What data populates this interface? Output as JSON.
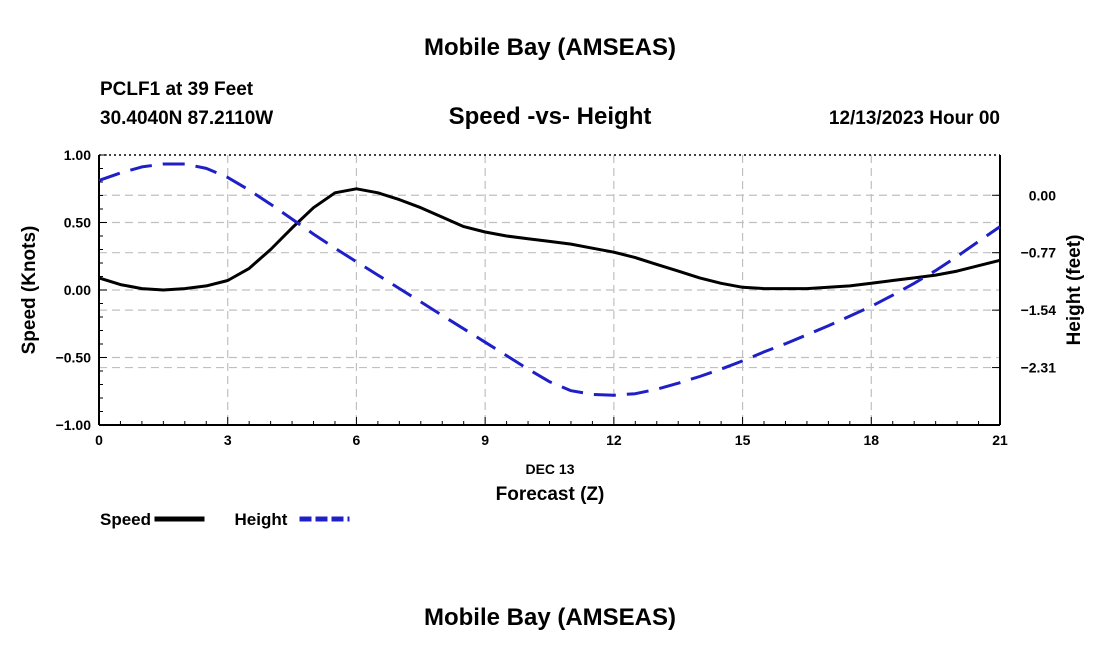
{
  "chart_data": {
    "type": "line",
    "title": "Mobile Bay (AMSEAS)",
    "footer_title": "Mobile Bay (AMSEAS)",
    "station": "PCLF1 at 39 Feet",
    "location": "30.4040N  87.2110W",
    "subtitle": "Speed -vs- Height",
    "date_label": "12/13/2023 Hour 00",
    "xlabel": "Forecast (Z)",
    "xdate_label": "DEC 13",
    "ylabel": "Speed (Knots)",
    "y2label": "Height (feet)",
    "xlim": [
      0,
      21
    ],
    "ylim": [
      -1.0,
      1.0
    ],
    "y2lim": [
      -3.08,
      0.54
    ],
    "x_ticks": [
      0,
      3,
      6,
      9,
      12,
      15,
      18,
      21
    ],
    "x_tick_labels": [
      "0",
      "3",
      "6",
      "9",
      "12",
      "15",
      "18",
      "21"
    ],
    "y_ticks": [
      1.0,
      0.5,
      0.0,
      -0.5,
      -1.0
    ],
    "y_tick_labels": [
      "1.00",
      "0.50",
      "0.00",
      "−0.50",
      "−1.00"
    ],
    "y2_ticks": [
      0.0,
      -0.77,
      -1.54,
      -2.31
    ],
    "y2_tick_labels": [
      "0.00",
      "−0.77",
      "−1.54",
      "−2.31"
    ],
    "grid": true,
    "series": [
      {
        "name": "Speed",
        "axis": "left",
        "color": "#000000",
        "dash": "solid",
        "x": [
          0,
          0.5,
          1,
          1.5,
          2,
          2.5,
          3,
          3.5,
          4,
          4.5,
          5,
          5.5,
          6,
          6.5,
          7,
          7.5,
          8,
          8.5,
          9,
          9.5,
          10,
          10.5,
          11,
          11.5,
          12,
          12.5,
          13,
          13.5,
          14,
          14.5,
          15,
          15.5,
          16,
          16.5,
          17,
          17.5,
          18,
          18.5,
          19,
          19.5,
          20,
          20.5,
          21
        ],
        "values": [
          0.09,
          0.04,
          0.01,
          0.0,
          0.01,
          0.03,
          0.07,
          0.16,
          0.3,
          0.46,
          0.61,
          0.72,
          0.75,
          0.72,
          0.67,
          0.61,
          0.54,
          0.47,
          0.43,
          0.4,
          0.38,
          0.36,
          0.34,
          0.31,
          0.28,
          0.24,
          0.19,
          0.14,
          0.09,
          0.05,
          0.02,
          0.01,
          0.01,
          0.01,
          0.02,
          0.03,
          0.05,
          0.07,
          0.09,
          0.11,
          0.14,
          0.18,
          0.22
        ]
      },
      {
        "name": "Height",
        "axis": "right",
        "color": "#1f1fc8",
        "dash": "dashed",
        "x": [
          0,
          0.5,
          1,
          1.5,
          2,
          2.5,
          3,
          3.5,
          4,
          4.5,
          5,
          5.5,
          6,
          6.5,
          7,
          7.5,
          8,
          8.5,
          9,
          9.5,
          10,
          10.5,
          11,
          11.5,
          12,
          12.5,
          13,
          13.5,
          14,
          14.5,
          15,
          15.5,
          16,
          16.5,
          17,
          17.5,
          18,
          18.5,
          19,
          19.5,
          20,
          20.5,
          21
        ],
        "values": [
          0.2,
          0.3,
          0.38,
          0.42,
          0.42,
          0.36,
          0.24,
          0.07,
          -0.12,
          -0.32,
          -0.52,
          -0.71,
          -0.89,
          -1.07,
          -1.25,
          -1.43,
          -1.61,
          -1.79,
          -1.97,
          -2.15,
          -2.33,
          -2.5,
          -2.62,
          -2.67,
          -2.68,
          -2.66,
          -2.6,
          -2.52,
          -2.43,
          -2.33,
          -2.22,
          -2.1,
          -1.99,
          -1.87,
          -1.75,
          -1.62,
          -1.49,
          -1.34,
          -1.18,
          -1.01,
          -0.82,
          -0.62,
          -0.42
        ]
      }
    ],
    "legend": [
      {
        "label": "Speed",
        "color": "#000000",
        "dash": "solid"
      },
      {
        "label": "Height",
        "color": "#1f1fc8",
        "dash": "dashed"
      }
    ]
  }
}
